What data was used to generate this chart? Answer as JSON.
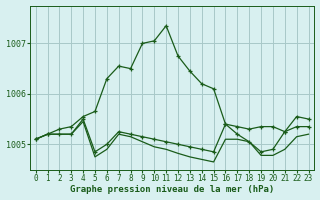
{
  "title": "Graphe pression niveau de la mer (hPa)",
  "background_color": "#d8f0f0",
  "grid_color": "#a8c8c8",
  "line_color": "#1a5c1a",
  "x_labels": [
    "0",
    "1",
    "2",
    "3",
    "4",
    "5",
    "6",
    "7",
    "8",
    "9",
    "10",
    "11",
    "12",
    "13",
    "14",
    "15",
    "16",
    "17",
    "18",
    "19",
    "20",
    "21",
    "22",
    "23"
  ],
  "ylim": [
    1004.5,
    1007.75
  ],
  "yticks": [
    1005,
    1006,
    1007
  ],
  "series1": [
    1005.1,
    1005.2,
    1005.3,
    1005.35,
    1005.55,
    1005.65,
    1006.3,
    1006.55,
    1006.5,
    1007.0,
    1007.05,
    1007.35,
    1006.75,
    1006.45,
    1006.2,
    1006.1,
    1005.4,
    1005.2,
    1005.05,
    1004.85,
    1004.9,
    1005.25,
    1005.55,
    1005.5
  ],
  "series2": [
    1005.1,
    1005.2,
    1005.2,
    1005.2,
    1005.5,
    1004.85,
    1005.0,
    1005.25,
    1005.2,
    1005.15,
    1005.1,
    1005.05,
    1005.0,
    1004.95,
    1004.9,
    1004.85,
    1005.4,
    1005.35,
    1005.3,
    1005.35,
    1005.35,
    1005.25,
    1005.35,
    1005.35
  ],
  "series3": [
    1005.1,
    1005.2,
    1005.2,
    1005.2,
    1005.45,
    1004.75,
    1004.9,
    1005.2,
    1005.15,
    1005.05,
    1004.95,
    1004.9,
    1004.82,
    1004.75,
    1004.7,
    1004.65,
    1005.1,
    1005.1,
    1005.05,
    1004.78,
    1004.78,
    1004.9,
    1005.15,
    1005.2
  ],
  "title_fontsize": 6.5,
  "tick_fontsize": 5.5
}
